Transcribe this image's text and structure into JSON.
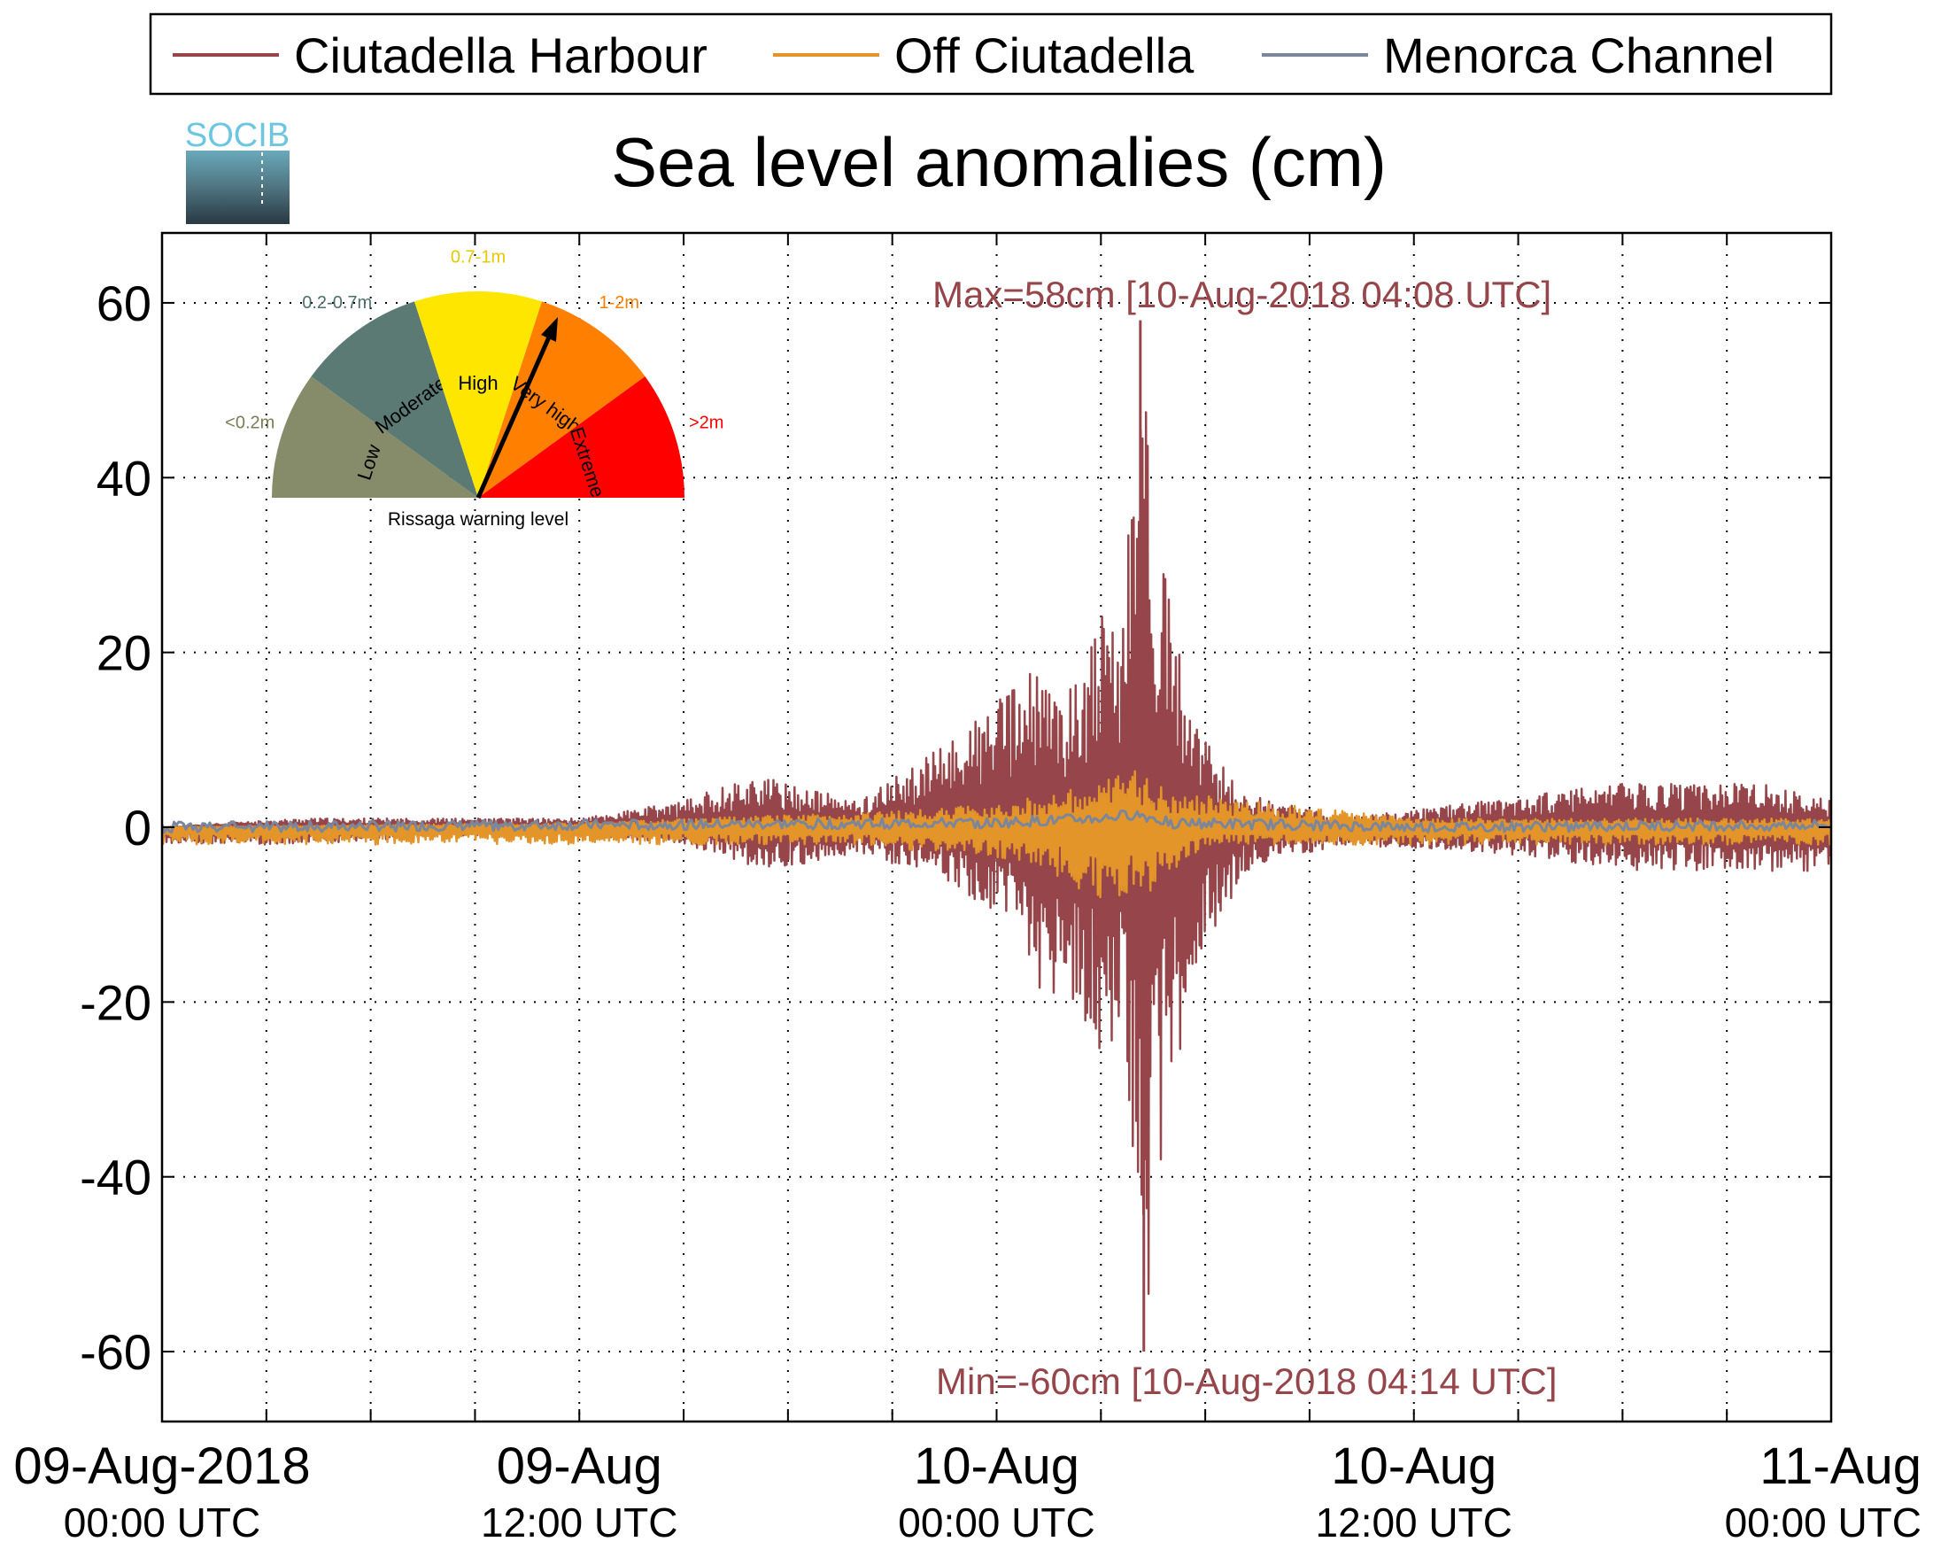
{
  "chart_data": {
    "type": "line",
    "title": "Sea level anomalies (cm)",
    "xlabel": "",
    "ylabel": "",
    "x_range": [
      "2018-08-09T00:00Z",
      "2018-08-11T00:00Z"
    ],
    "ylim": [
      -68,
      68
    ],
    "y_ticks": [
      -60,
      -40,
      -20,
      0,
      20,
      40,
      60
    ],
    "x_ticks": [
      {
        "date": "09-Aug-2018",
        "time": "00:00 UTC",
        "x": "2018-08-09T00:00Z"
      },
      {
        "date": "09-Aug",
        "time": "12:00 UTC",
        "x": "2018-08-09T12:00Z"
      },
      {
        "date": "10-Aug",
        "time": "00:00 UTC",
        "x": "2018-08-10T00:00Z"
      },
      {
        "date": "10-Aug",
        "time": "12:00 UTC",
        "x": "2018-08-10T12:00Z"
      },
      {
        "date": "11-Aug",
        "time": "00:00 UTC",
        "x": "2018-08-11T00:00Z"
      }
    ],
    "grid": true,
    "legend_position": "top",
    "series": [
      {
        "name": "Ciutadella Harbour",
        "color": "#96464a",
        "values": [
          [
            "2018-08-09T00:00Z",
            0
          ],
          [
            "2018-08-09T04:00Z",
            1
          ],
          [
            "2018-08-09T04:00Z",
            -2
          ],
          [
            "2018-08-09T08:00Z",
            1
          ],
          [
            "2018-08-09T08:00Z",
            -1
          ],
          [
            "2018-08-09T12:00Z",
            1
          ],
          [
            "2018-08-09T12:00Z",
            -1
          ],
          [
            "2018-08-09T15:00Z",
            3
          ],
          [
            "2018-08-09T15:00Z",
            -2
          ],
          [
            "2018-08-09T17:00Z",
            6
          ],
          [
            "2018-08-09T17:30Z",
            -5
          ],
          [
            "2018-08-09T20:00Z",
            3
          ],
          [
            "2018-08-09T20:00Z",
            -3
          ],
          [
            "2018-08-09T22:00Z",
            8
          ],
          [
            "2018-08-09T22:30Z",
            -6
          ],
          [
            "2018-08-10T00:30Z",
            16
          ],
          [
            "2018-08-10T00:40Z",
            -12
          ],
          [
            "2018-08-10T01:00Z",
            18
          ],
          [
            "2018-08-10T01:00Z",
            -19
          ],
          [
            "2018-08-10T02:00Z",
            15
          ],
          [
            "2018-08-10T02:10Z",
            -20
          ],
          [
            "2018-08-10T03:00Z",
            25
          ],
          [
            "2018-08-10T03:10Z",
            -27
          ],
          [
            "2018-08-10T03:30Z",
            21
          ],
          [
            "2018-08-10T03:40Z",
            -25
          ],
          [
            "2018-08-10T04:08Z",
            58
          ],
          [
            "2018-08-10T04:14Z",
            -60
          ],
          [
            "2018-08-10T04:40Z",
            33
          ],
          [
            "2018-08-10T04:50Z",
            -34
          ],
          [
            "2018-08-10T05:40Z",
            12
          ],
          [
            "2018-08-10T05:50Z",
            -15
          ],
          [
            "2018-08-10T07:00Z",
            4
          ],
          [
            "2018-08-10T07:10Z",
            -5
          ],
          [
            "2018-08-10T10:00Z",
            1
          ],
          [
            "2018-08-10T10:00Z",
            -2
          ],
          [
            "2018-08-10T14:00Z",
            3
          ],
          [
            "2018-08-10T14:30Z",
            -3
          ],
          [
            "2018-08-10T18:00Z",
            5
          ],
          [
            "2018-08-10T18:30Z",
            -5
          ],
          [
            "2018-08-10T22:00Z",
            5
          ],
          [
            "2018-08-10T22:30Z",
            -5
          ],
          [
            "2018-08-11T00:00Z",
            3
          ]
        ]
      },
      {
        "name": "Off Ciutadella",
        "color": "#e3952a",
        "values": [
          [
            "2018-08-09T00:00Z",
            0
          ],
          [
            "2018-08-09T12:00Z",
            0.5
          ],
          [
            "2018-08-09T20:00Z",
            -2
          ],
          [
            "2018-08-09T22:00Z",
            2
          ],
          [
            "2018-08-10T00:30Z",
            3
          ],
          [
            "2018-08-10T01:00Z",
            -4
          ],
          [
            "2018-08-10T03:00Z",
            5
          ],
          [
            "2018-08-10T03:10Z",
            -9
          ],
          [
            "2018-08-10T04:00Z",
            7
          ],
          [
            "2018-08-10T04:15Z",
            -8
          ],
          [
            "2018-08-10T05:00Z",
            4
          ],
          [
            "2018-08-10T06:00Z",
            -2
          ],
          [
            "2018-08-10T12:00Z",
            1
          ],
          [
            "2018-08-10T18:00Z",
            -2
          ],
          [
            "2018-08-11T00:00Z",
            1
          ]
        ]
      },
      {
        "name": "Menorca Channel",
        "color": "#7a869c",
        "values": [
          [
            "2018-08-09T00:00Z",
            0
          ],
          [
            "2018-08-09T12:00Z",
            0.5
          ],
          [
            "2018-08-10T00:00Z",
            1
          ],
          [
            "2018-08-10T03:00Z",
            2
          ],
          [
            "2018-08-10T04:00Z",
            3
          ],
          [
            "2018-08-10T05:00Z",
            1
          ],
          [
            "2018-08-10T12:00Z",
            0
          ],
          [
            "2018-08-11T00:00Z",
            0.5
          ]
        ]
      }
    ],
    "annotations": {
      "max": "Max=58cm [10-Aug-2018 04:08 UTC]",
      "min": "Min=-60cm [10-Aug-2018 04:14 UTC]"
    }
  },
  "logo": {
    "text": "SOCIB"
  },
  "gauge": {
    "caption": "Rissaga warning level",
    "needle_level": "Very high",
    "sectors": [
      {
        "level": "Low",
        "range": "<0.2m",
        "color": "#868b6a",
        "range_color": "#7a7d55"
      },
      {
        "level": "Moderate",
        "range": "0.2-0.7m",
        "color": "#5b7a73",
        "range_color": "#4f706a"
      },
      {
        "level": "High",
        "range": "0.7-1m",
        "color": "#ffe600",
        "range_color": "#e8c800"
      },
      {
        "level": "Very high",
        "range": "1-2m",
        "color": "#ff8000",
        "range_color": "#ff8000"
      },
      {
        "level": "Extreme",
        "range": ">2m",
        "color": "#ff0000",
        "range_color": "#ff0000"
      }
    ]
  }
}
